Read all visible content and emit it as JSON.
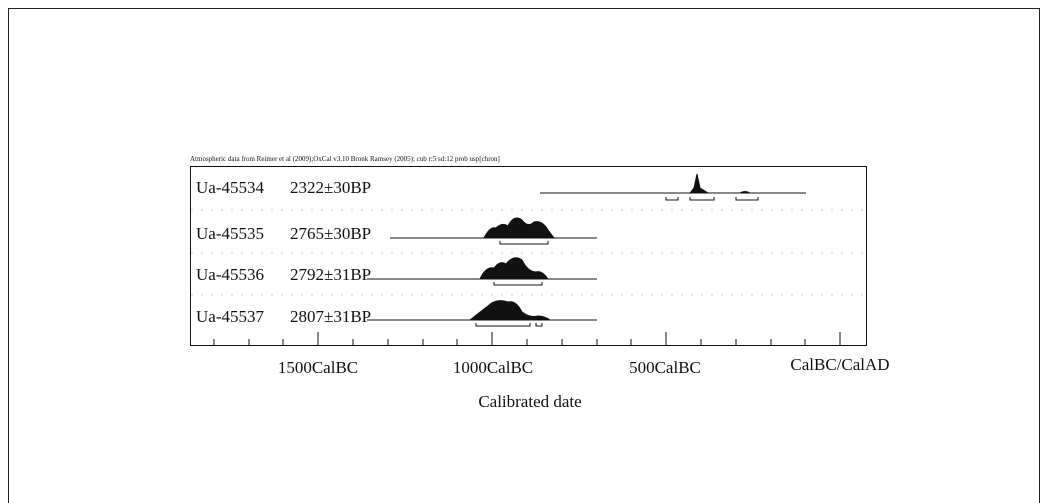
{
  "header": "Atmospheric data from Reimer et al (2009);OxCal v3.10 Bronk Ramsey (2005); cub r:5 sd:12 prob usp[chron]",
  "rows": [
    {
      "id": "Ua-45534",
      "age": "2322±30BP"
    },
    {
      "id": "Ua-45535",
      "age": "2765±30BP"
    },
    {
      "id": "Ua-45536",
      "age": "2792±31BP"
    },
    {
      "id": "Ua-45537",
      "age": "2807±31BP"
    }
  ],
  "axis": {
    "tick_labels": [
      "1500CalBC",
      "1000CalBC",
      "500CalBC",
      "CalBC/CalAD"
    ],
    "title": "Calibrated date"
  }
}
